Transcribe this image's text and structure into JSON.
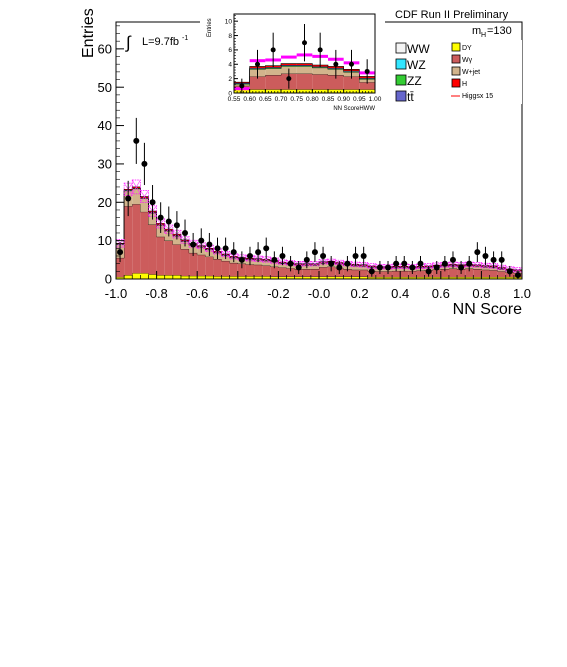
{
  "chart_data": [
    {
      "type": "histogram",
      "title": "CDF Run II Preliminary",
      "xlabel": "NN Score",
      "ylabel": "Entries",
      "xlim": [
        -1.0,
        1.0
      ],
      "ylim": [
        0,
        67
      ],
      "x_ticks": [
        "-1.0",
        "-0.8",
        "-0.6",
        "-0.4",
        "-0.2",
        "-0.0",
        "0.2",
        "0.4",
        "0.6",
        "0.8",
        "1.0"
      ],
      "y_ticks": [
        "0",
        "10",
        "20",
        "30",
        "40",
        "50",
        "60"
      ],
      "lumi_label": "L=9.7fb",
      "lumi_sup": "-1",
      "mass_label": "m",
      "mass_sub": "H",
      "mass_value": "=130",
      "legend_left": [
        {
          "name": "WW",
          "color": "#f4f4f4"
        },
        {
          "name": "WZ",
          "color": "#33e6ff"
        },
        {
          "name": "ZZ",
          "color": "#33cc33"
        },
        {
          "name": "tt̄",
          "color": "#6666cc"
        }
      ],
      "legend_right": [
        {
          "name": "DY",
          "color": "#ffff00"
        },
        {
          "name": "Wγ",
          "color": "#cc5c5c"
        },
        {
          "name": "W+jet",
          "color": "#d2b48c"
        },
        {
          "name": "H",
          "color": "#ff0000"
        },
        {
          "name": "Higgsx 15",
          "color": "#ff0000"
        }
      ],
      "bins": [
        -1.0,
        -0.96,
        -0.92,
        -0.88,
        -0.84,
        -0.8,
        -0.76,
        -0.72,
        -0.68,
        -0.64,
        -0.6,
        -0.56,
        -0.52,
        -0.48,
        -0.44,
        -0.4,
        -0.36,
        -0.32,
        -0.28,
        -0.24,
        -0.2,
        -0.16,
        -0.12,
        -0.08,
        -0.04,
        0.0,
        0.04,
        0.08,
        0.12,
        0.16,
        0.2,
        0.24,
        0.28,
        0.32,
        0.36,
        0.4,
        0.44,
        0.48,
        0.52,
        0.56,
        0.6,
        0.64,
        0.68,
        0.72,
        0.76,
        0.8,
        0.84,
        0.88,
        0.92,
        0.96,
        1.0
      ],
      "stack": [
        {
          "name": "DY",
          "color": "#ffff00",
          "values": [
            0.5,
            1,
            1.5,
            1.5,
            1.2,
            1,
            1,
            1,
            0.8,
            0.8,
            0.8,
            0.8,
            0.7,
            0.7,
            0.7,
            0.7,
            0.7,
            0.7,
            0.7,
            0.6,
            0.6,
            0.6,
            0.6,
            0.6,
            0.6,
            0.6,
            0.6,
            0.6,
            0.6,
            0.6,
            0.6,
            0.5,
            0.5,
            0.5,
            0.5,
            0.5,
            0.5,
            0.5,
            0.5,
            0.5,
            0.5,
            0.5,
            0.5,
            0.5,
            0.5,
            0.5,
            0.5,
            0.5,
            0.5,
            0.5
          ]
        },
        {
          "name": "Wγ",
          "color": "#cc5c5c",
          "values": [
            5,
            18,
            18,
            16,
            13,
            10,
            9,
            8,
            7,
            6,
            5.5,
            5,
            4.5,
            4,
            3.5,
            3.3,
            3.1,
            3,
            2.8,
            2.6,
            2.4,
            2.2,
            2,
            2,
            2,
            2.5,
            2.6,
            2.3,
            2,
            1.8,
            1.8,
            1.6,
            1.5,
            1.5,
            1.6,
            1.6,
            1.6,
            1.7,
            1.8,
            2,
            2.1,
            2.2,
            2.1,
            2.2,
            2.1,
            1.9,
            1.8,
            1.5,
            1.2,
            1
          ]
        },
        {
          "name": "W+jet",
          "color": "#d2b48c",
          "values": [
            3.5,
            4,
            4,
            3.5,
            3,
            3,
            2.5,
            2.2,
            2,
            2,
            2,
            1.8,
            1.6,
            1.4,
            1.3,
            1.2,
            1.2,
            1.2,
            1.2,
            1.2,
            1,
            1,
            1,
            1,
            1,
            1,
            1,
            1,
            1,
            1,
            0.9,
            0.9,
            0.8,
            0.8,
            0.8,
            0.8,
            0.7,
            0.7,
            0.7,
            0.7,
            0.7,
            0.7,
            0.7,
            0.7,
            0.7,
            0.7,
            0.7,
            0.6,
            0.5,
            0.5
          ]
        },
        {
          "name": "ZZ",
          "color": "#33cc33",
          "values": [
            0.1,
            0.1,
            0.1,
            0.1,
            0.1,
            0.1,
            0.1,
            0.1,
            0.1,
            0.1,
            0.1,
            0.1,
            0.1,
            0.1,
            0.1,
            0.1,
            0.1,
            0.1,
            0.1,
            0.1,
            0.1,
            0.1,
            0.1,
            0.1,
            0.1,
            0.1,
            0.1,
            0.1,
            0.1,
            0.1,
            0.1,
            0.1,
            0.1,
            0.1,
            0.1,
            0.1,
            0.1,
            0.1,
            0.1,
            0.1,
            0.1,
            0.1,
            0.1,
            0.1,
            0.1,
            0.1,
            0.1,
            0.1,
            0.1,
            0.1
          ]
        },
        {
          "name": "WZ",
          "color": "#33e6ff",
          "values": [
            0.1,
            0.1,
            0.1,
            0.1,
            0.1,
            0.1,
            0.1,
            0.1,
            0.1,
            0.1,
            0.1,
            0.1,
            0.1,
            0.1,
            0.1,
            0.1,
            0.1,
            0.1,
            0.1,
            0.1,
            0.1,
            0.1,
            0.1,
            0.1,
            0.1,
            0.1,
            0.1,
            0.1,
            0.1,
            0.1,
            0.1,
            0.1,
            0.1,
            0.1,
            0.1,
            0.1,
            0.1,
            0.1,
            0.1,
            0.1,
            0.1,
            0.1,
            0.1,
            0.1,
            0.1,
            0.1,
            0.1,
            0.1,
            0.1,
            0.1
          ]
        },
        {
          "name": "H",
          "color": "#ff0000",
          "values": [
            0.1,
            0.2,
            0.3,
            0.3,
            0.3,
            0.3,
            0.3,
            0.3,
            0.2,
            0.2,
            0.2,
            0.2,
            0.2,
            0.2,
            0.2,
            0.2,
            0.2,
            0.2,
            0.2,
            0.2,
            0.2,
            0.2,
            0.2,
            0.2,
            0.2,
            0.2,
            0.2,
            0.2,
            0.2,
            0.2,
            0.2,
            0.2,
            0.2,
            0.2,
            0.2,
            0.2,
            0.2,
            0.2,
            0.2,
            0.2,
            0.2,
            0.2,
            0.2,
            0.2,
            0.2,
            0.2,
            0.2,
            0.2,
            0.2,
            0.2
          ]
        }
      ],
      "uncertainty_band": [
        1.0,
        1.6,
        1.8,
        1.6,
        1.4,
        1.2,
        1.1,
        1.0,
        0.9,
        0.9,
        0.8,
        0.8,
        0.7,
        0.7,
        0.7,
        0.7,
        0.7,
        0.7,
        0.7,
        0.7,
        0.6,
        0.6,
        0.6,
        0.6,
        0.6,
        0.6,
        0.6,
        0.6,
        0.6,
        0.6,
        0.6,
        0.6,
        0.6,
        0.6,
        0.6,
        0.6,
        0.6,
        0.6,
        0.6,
        0.6,
        0.6,
        0.6,
        0.6,
        0.6,
        0.6,
        0.6,
        0.6,
        0.6,
        0.6,
        0.6
      ],
      "data_points": [
        7,
        21,
        36,
        30,
        20,
        16,
        15,
        14,
        12,
        9,
        10,
        9,
        8,
        8,
        7,
        5,
        6,
        7,
        8,
        5,
        6,
        4,
        3,
        5,
        7,
        6,
        4,
        3,
        4,
        6,
        6,
        2,
        3,
        3,
        4,
        4,
        3,
        4,
        2,
        3,
        4,
        5,
        3,
        4,
        7,
        6,
        5,
        5,
        2,
        1
      ],
      "data_errors": [
        2.6,
        4.6,
        6,
        5.5,
        4.5,
        4,
        3.9,
        3.7,
        3.5,
        3,
        3.2,
        3,
        2.8,
        2.8,
        2.6,
        2.2,
        2.4,
        2.6,
        2.8,
        2.2,
        2.4,
        2,
        1.7,
        2.2,
        2.6,
        2.4,
        2,
        1.7,
        2,
        2.4,
        2.4,
        1.4,
        1.7,
        1.7,
        2,
        2,
        1.7,
        2,
        1.4,
        1.7,
        2,
        2.2,
        1.7,
        2,
        2.6,
        2.4,
        2.2,
        2.2,
        1.4,
        1
      ]
    },
    {
      "type": "histogram",
      "title": "",
      "xlabel": "NN ScoreHWW",
      "ylabel": "Entries",
      "xlim": [
        0.55,
        1.0
      ],
      "ylim": [
        0,
        11
      ],
      "x_ticks": [
        "0.55",
        "0.60",
        "0.65",
        "0.70",
        "0.75",
        "0.80",
        "0.85",
        "0.90",
        "0.95",
        "1.00"
      ],
      "y_ticks": [
        "0",
        "2",
        "4",
        "6",
        "8",
        "10"
      ],
      "bins": [
        0.55,
        0.6,
        0.65,
        0.7,
        0.75,
        0.8,
        0.85,
        0.9,
        0.95,
        1.0
      ],
      "stack": [
        {
          "name": "DY",
          "color": "#ffff00",
          "values": [
            0.5,
            0.5,
            0.5,
            0.5,
            0.5,
            0.5,
            0.5,
            0.5,
            0.5
          ]
        },
        {
          "name": "Wγ",
          "color": "#cc5c5c",
          "values": [
            0.5,
            1.8,
            2.0,
            2.2,
            2.2,
            2.1,
            2.0,
            1.8,
            1.0
          ]
        },
        {
          "name": "W+jet",
          "color": "#d2b48c",
          "values": [
            0.2,
            1.0,
            0.9,
            1.0,
            1.0,
            0.9,
            0.8,
            0.6,
            0.4
          ]
        },
        {
          "name": "ZZ",
          "color": "#33cc33",
          "values": [
            0.1,
            0.1,
            0.1,
            0.1,
            0.1,
            0.1,
            0.1,
            0.1,
            0.1
          ]
        },
        {
          "name": "tt̄",
          "color": "#6666cc",
          "values": [
            0.1,
            0.1,
            0.1,
            0.1,
            0.1,
            0.1,
            0.1,
            0.1,
            0.1
          ]
        },
        {
          "name": "H",
          "color": "#ff0000",
          "values": [
            0.1,
            0.2,
            0.2,
            0.2,
            0.2,
            0.2,
            0.2,
            0.2,
            0.2
          ]
        }
      ],
      "signal_overlay": [
        0.6,
        4.5,
        4.6,
        5.0,
        5.3,
        5.1,
        4.7,
        4.2,
        2.8
      ],
      "data_points": [
        1,
        4,
        6,
        2,
        7,
        6,
        4,
        4,
        3
      ],
      "data_errors": [
        1,
        2,
        2.4,
        1.4,
        2.6,
        2.4,
        2,
        2,
        1.7
      ]
    }
  ]
}
